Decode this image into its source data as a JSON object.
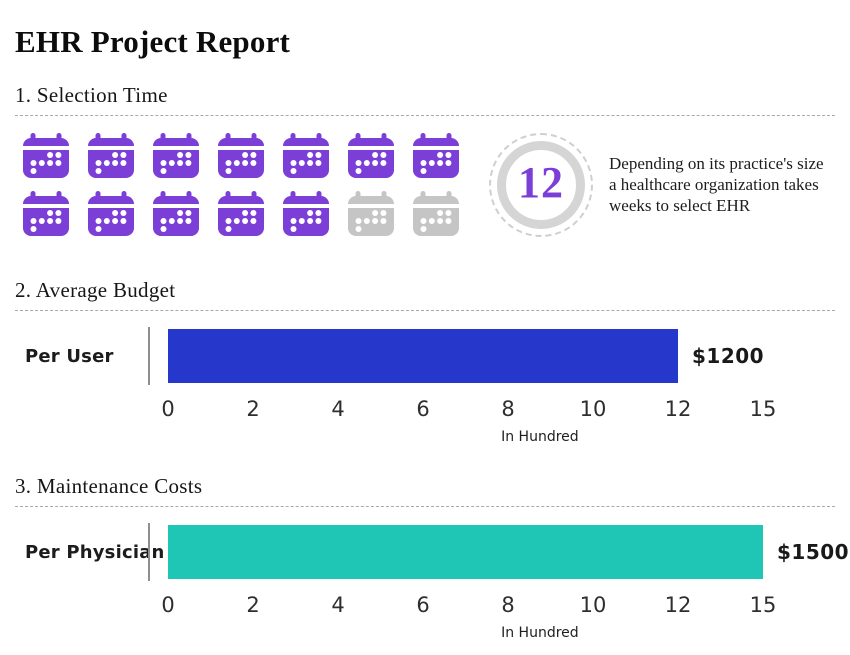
{
  "title": "EHR Project Report",
  "colors": {
    "calendar_active": "#7b3ed6",
    "calendar_inactive": "#c5c5c5",
    "stat_number": "#7b3ed6",
    "budget_bar": "#2538cb",
    "maintenance_bar": "#1fc5b5"
  },
  "sections": {
    "selection": {
      "heading": "1. Selection Time",
      "calendar_icon": "calendar-icon",
      "weeks_total": 14,
      "weeks_highlighted": 12,
      "weeks_number": "12",
      "description": "Depending on its practice's size a healthcare organization takes weeks to select EHR"
    }
  },
  "chart_data": [
    {
      "type": "bar",
      "orientation": "horizontal",
      "title": "2. Average Budget",
      "categories": [
        "Per User"
      ],
      "values": [
        1200
      ],
      "value_labels": [
        "$1200"
      ],
      "unit_divisor": 100,
      "xlabel": "In Hundred",
      "xticks": [
        0,
        2,
        4,
        6,
        8,
        10,
        12,
        15
      ],
      "xlim": [
        0,
        15
      ],
      "tick_spacing": "uniform",
      "grid": false,
      "bar_color": "#2538cb"
    },
    {
      "type": "bar",
      "orientation": "horizontal",
      "title": "3. Maintenance Costs",
      "categories": [
        "Per Physician"
      ],
      "values": [
        1500
      ],
      "value_labels": [
        "$1500"
      ],
      "unit_divisor": 100,
      "xlabel": "In Hundred",
      "xticks": [
        0,
        2,
        4,
        6,
        8,
        10,
        12,
        15
      ],
      "xlim": [
        0,
        15
      ],
      "tick_spacing": "uniform",
      "grid": false,
      "bar_color": "#1fc5b5"
    }
  ]
}
